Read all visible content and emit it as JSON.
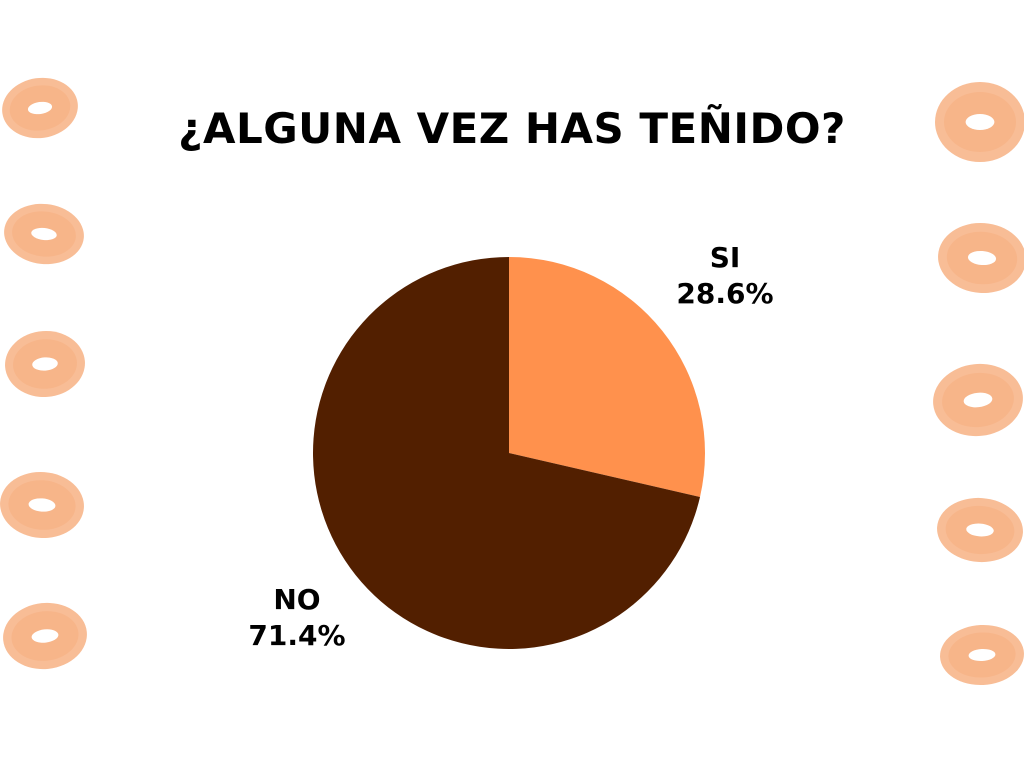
{
  "chart_data": {
    "type": "pie",
    "title": "¿ALGUNA VEZ HAS TEÑIDO?",
    "slices": [
      {
        "label": "SI",
        "value": 28.6,
        "value_label": "28.6%",
        "color": "#FF914D"
      },
      {
        "label": "NO",
        "value": 71.4,
        "value_label": "71.4%",
        "color": "#521F00"
      }
    ],
    "start_angle_deg": 0,
    "direction": "clockwise",
    "legend": "none"
  },
  "decoration": {
    "type": "watercolor-rings",
    "color": "#F5A773"
  }
}
